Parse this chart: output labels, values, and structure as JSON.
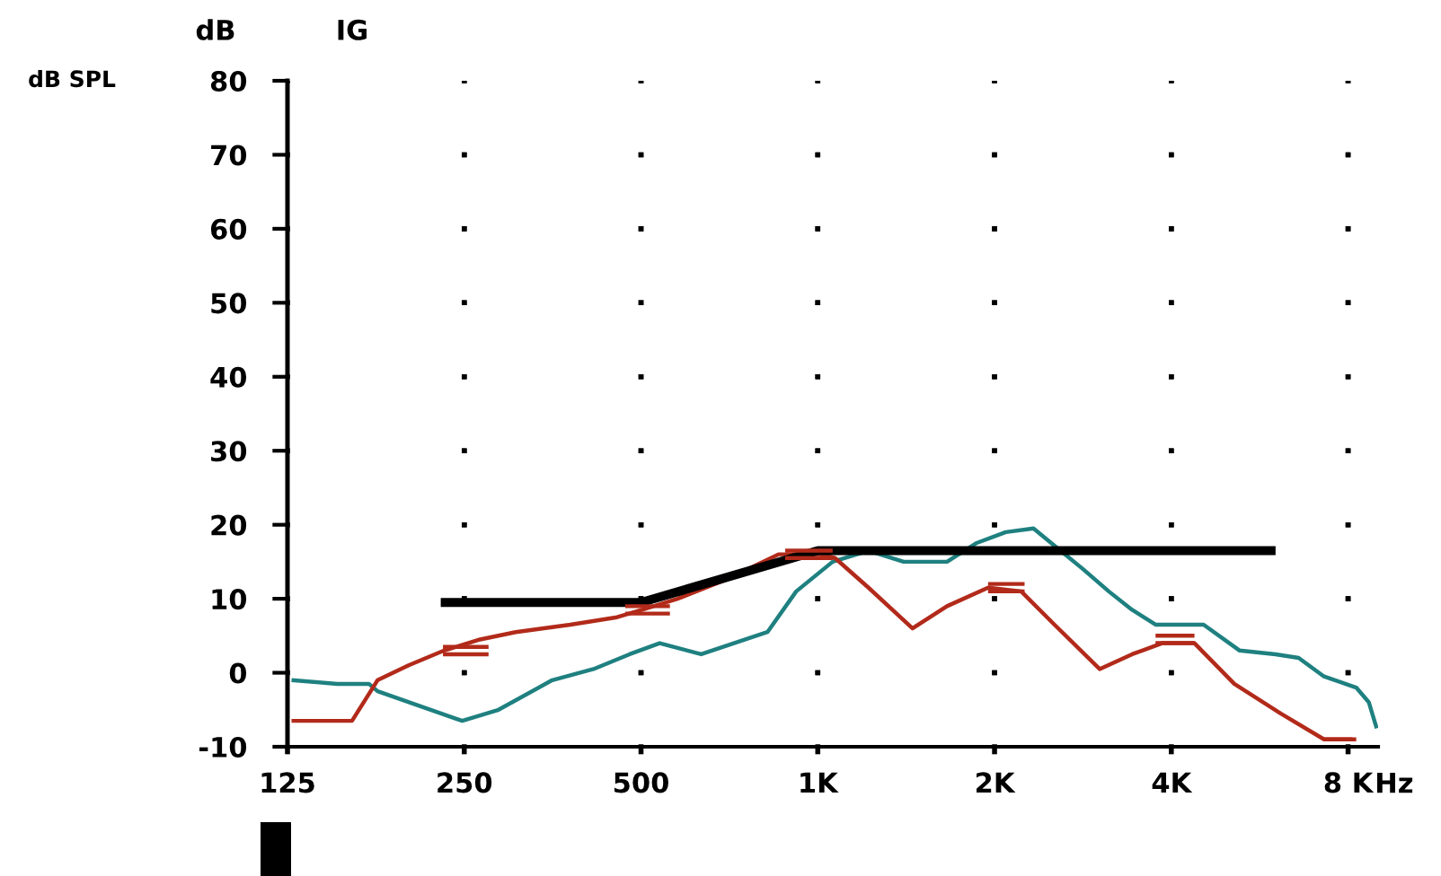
{
  "chart_data": {
    "type": "line",
    "annotations": [
      "dB",
      "IG"
    ],
    "ylabel": "dB SPL",
    "xlabel": "Hz",
    "log": "x",
    "grid": true,
    "xlim": [
      125,
      9000
    ],
    "ylim": [
      -10,
      80
    ],
    "xticks": [
      125,
      250,
      500,
      {
        "value": 1000,
        "label": "1K"
      },
      {
        "value": 2000,
        "label": "2K"
      },
      {
        "value": 4000,
        "label": "4K"
      },
      {
        "value": 8000,
        "label": "8 K"
      }
    ],
    "yticks": [
      -10,
      0,
      10,
      20,
      30,
      40,
      50,
      60,
      70,
      80
    ],
    "series": [
      {
        "color": "#1f8080",
        "x": [
          127,
          152,
          172,
          178,
          210,
          248,
          286,
          353,
          415,
          478,
          538,
          633,
          821,
          919,
          1060,
          1220,
          1400,
          1660,
          1860,
          2090,
          2330,
          2590,
          2830,
          3130,
          3430,
          3760,
          4140,
          4540,
          5230,
          6020,
          6590,
          7280,
          8260,
          8680,
          8950
        ],
        "values": [
          -1,
          -1.5,
          -1.5,
          -2.5,
          -4.5,
          -6.5,
          -5,
          -1,
          0.5,
          2.5,
          4,
          2.5,
          5.5,
          11,
          15,
          16.5,
          15,
          15,
          17.5,
          19,
          19.5,
          16.5,
          14,
          11,
          8.5,
          6.5,
          6.5,
          6.5,
          3,
          2.5,
          2,
          -0.5,
          -2,
          -4,
          -7.5
        ]
      },
      {
        "color": "#b22a1a",
        "x": [
          127,
          161,
          178,
          201,
          231,
          266,
          306,
          379,
          455,
          502,
          577,
          694,
          857,
          1010,
          1070,
          1220,
          1450,
          1660,
          1950,
          2220,
          2530,
          3020,
          3430,
          3860,
          4380,
          5120,
          6140,
          7280,
          8140
        ],
        "values": [
          -6.5,
          -6.5,
          -1,
          1,
          3,
          4.5,
          5.5,
          6.5,
          7.5,
          8.5,
          10,
          12.5,
          16,
          16,
          15.5,
          11.5,
          6,
          9,
          11.5,
          11,
          6.5,
          0.5,
          2.5,
          4,
          4,
          -1.5,
          -5.5,
          -9,
          -9
        ]
      },
      {
        "color": "#000000",
        "x": [
          228,
          500,
          1000,
          6020
        ],
        "values": [
          9.5,
          9.5,
          16.5,
          16.5
        ]
      },
      {
        "color": "#b22a1a",
        "x": [
          230,
          275
        ],
        "values": [
          3.5,
          3.5
        ]
      },
      {
        "color": "#b22a1a",
        "x": [
          230,
          275
        ],
        "values": [
          2.5,
          2.5
        ]
      },
      {
        "color": "#b22a1a",
        "x": [
          470,
          560
        ],
        "values": [
          9,
          9
        ]
      },
      {
        "color": "#b22a1a",
        "x": [
          470,
          560
        ],
        "values": [
          8,
          8
        ]
      },
      {
        "color": "#b22a1a",
        "x": [
          880,
          1060
        ],
        "values": [
          16.5,
          16.5
        ]
      },
      {
        "color": "#b22a1a",
        "x": [
          880,
          1060
        ],
        "values": [
          15.5,
          15.5
        ]
      },
      {
        "color": "#b22a1a",
        "x": [
          1950,
          2250
        ],
        "values": [
          12,
          12
        ]
      },
      {
        "color": "#b22a1a",
        "x": [
          1950,
          2250
        ],
        "values": [
          11,
          11
        ]
      },
      {
        "color": "#b22a1a",
        "x": [
          3760,
          4380
        ],
        "values": [
          5,
          5
        ]
      },
      {
        "color": "#b22a1a",
        "x": [
          3760,
          4380
        ],
        "values": [
          4,
          4
        ]
      },
      {
        "color": "#b22a1a",
        "x": [
          7280,
          8260
        ],
        "values": [
          -9,
          -9
        ]
      }
    ]
  }
}
